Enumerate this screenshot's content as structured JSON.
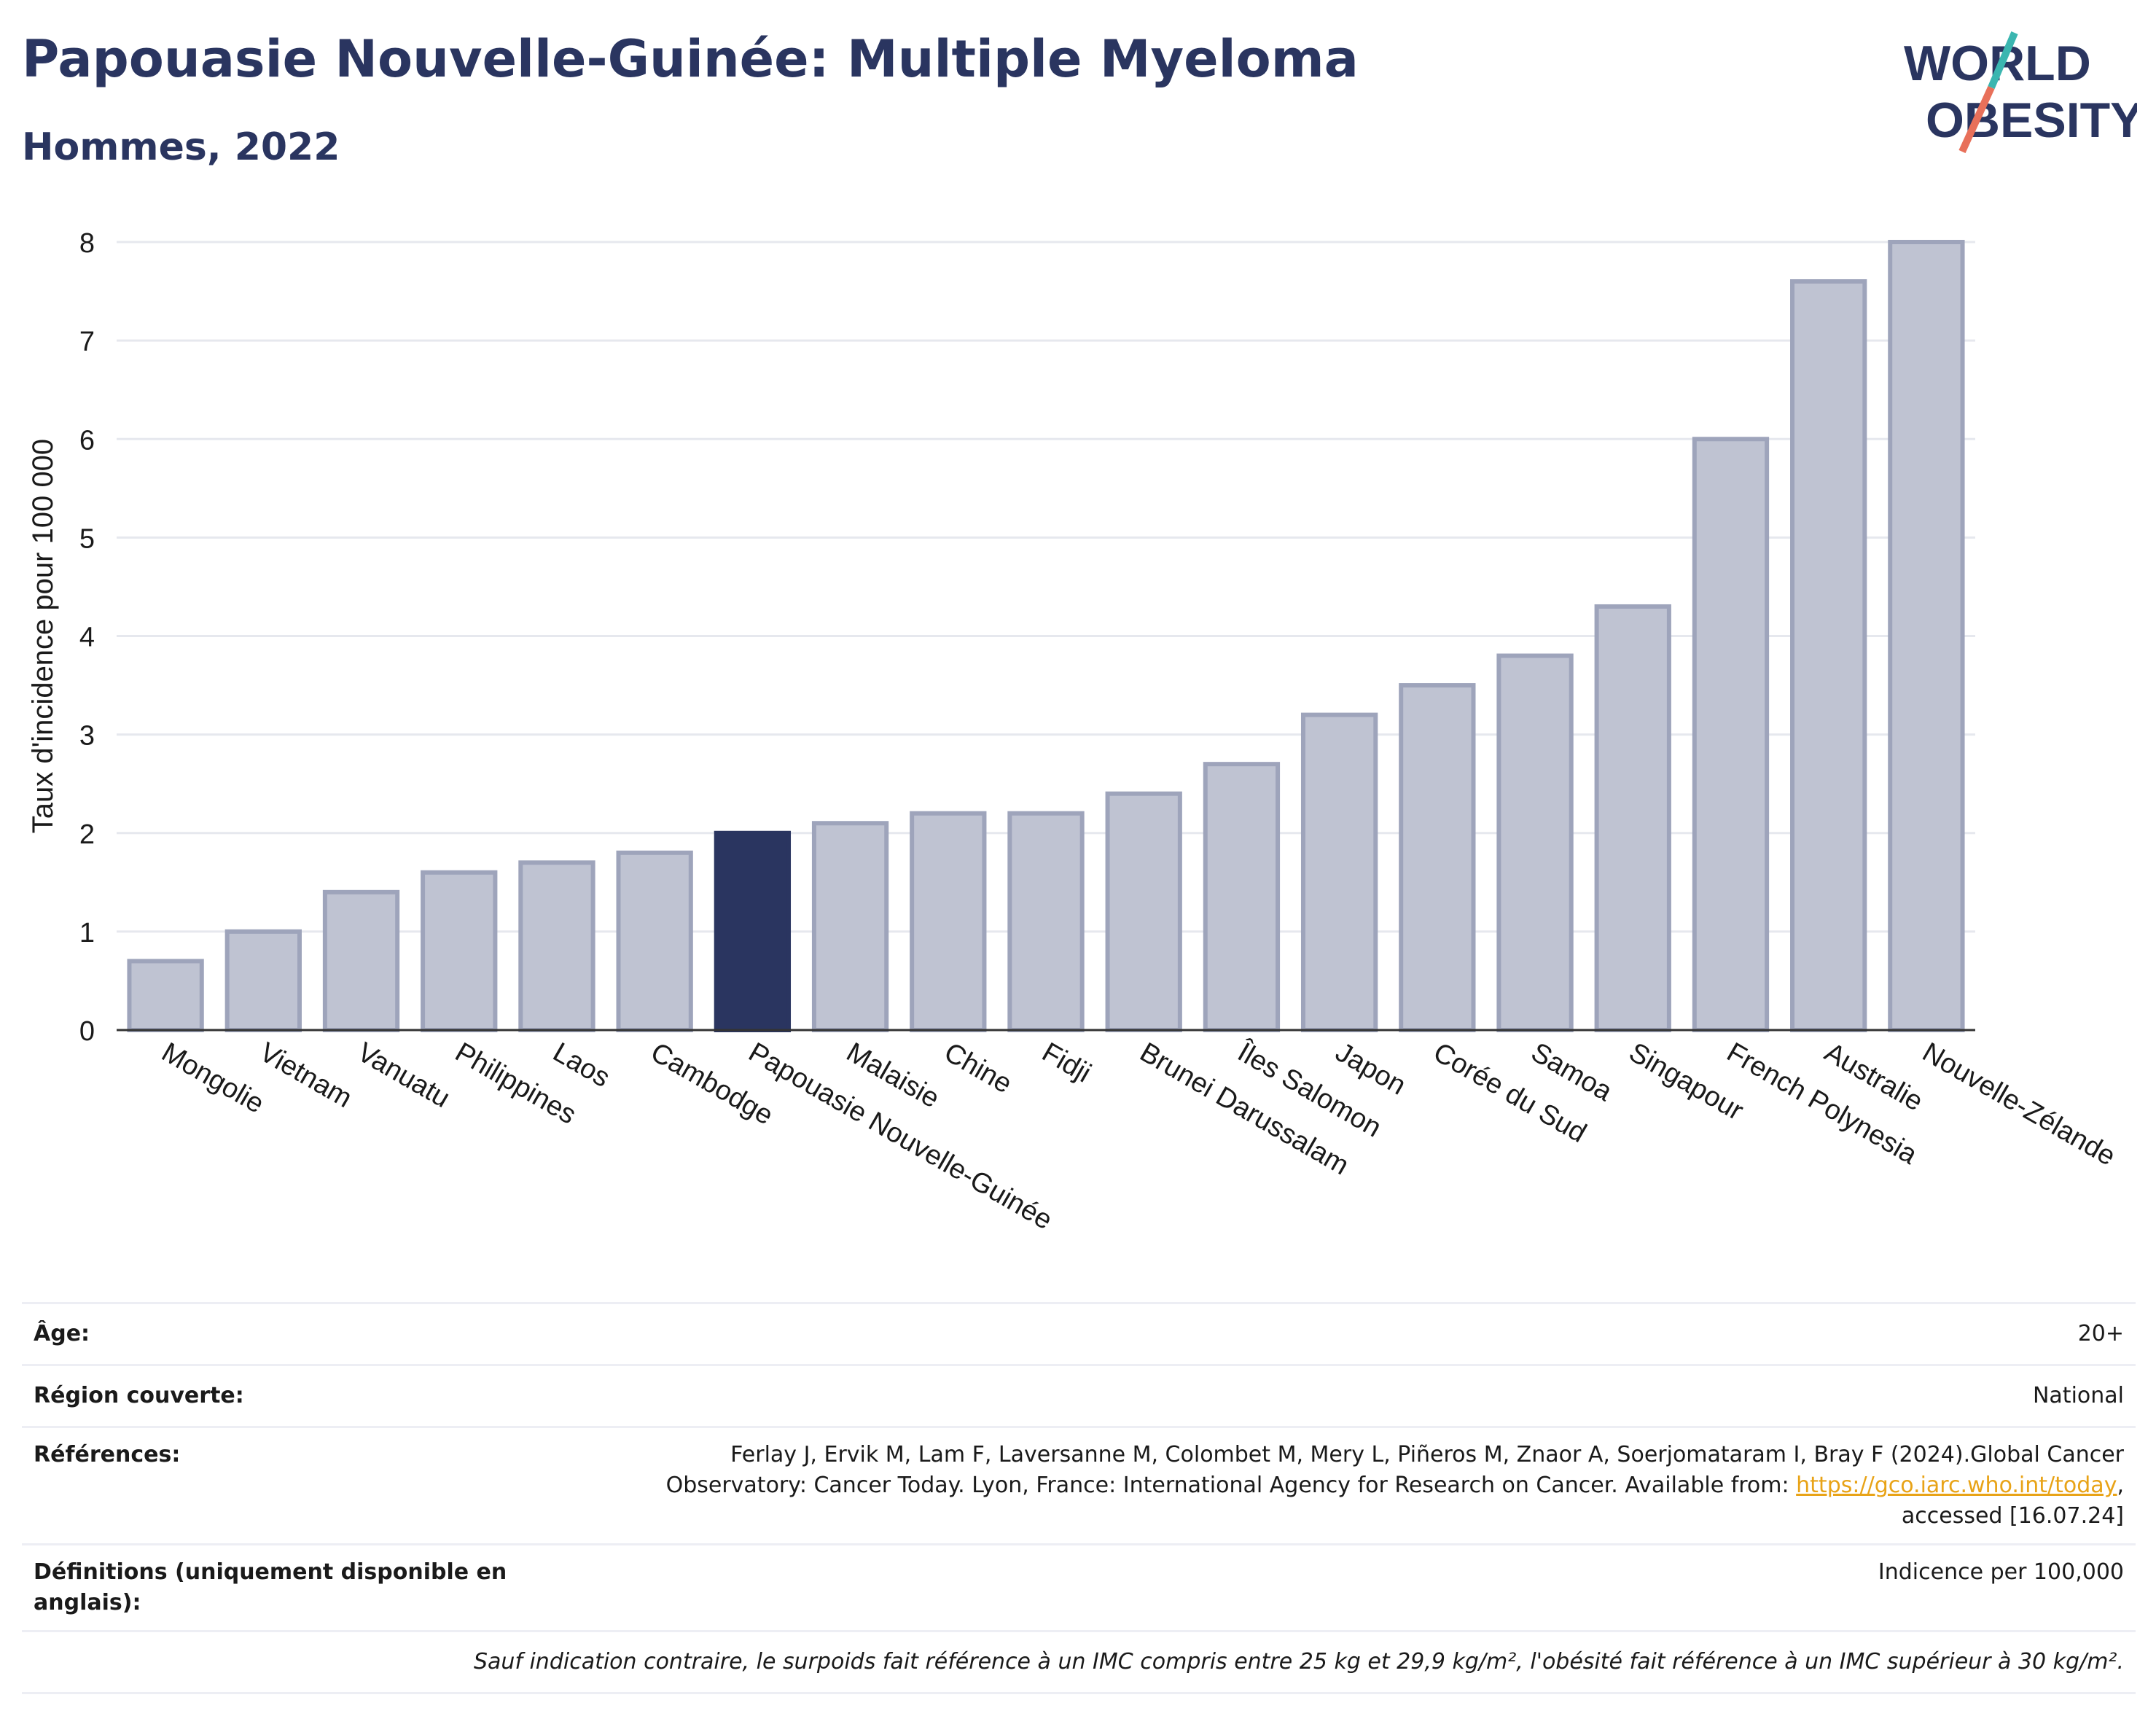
{
  "header": {
    "title": "Papouasie Nouvelle-Guinée: Multiple Myeloma",
    "subtitle": "Hommes, 2022"
  },
  "logo": {
    "line1": "WORLD",
    "line2": "OBESITY"
  },
  "chart_data": {
    "type": "bar",
    "ylabel": "Taux d'incidence pour 100 000",
    "ylim": [
      0,
      8
    ],
    "yticks": [
      0,
      1,
      2,
      3,
      4,
      5,
      6,
      7,
      8
    ],
    "grid": true,
    "categories": [
      "Mongolie",
      "Vietnam",
      "Vanuatu",
      "Philippines",
      "Laos",
      "Cambodge",
      "Papouasie Nouvelle-Guinée",
      "Malaisie",
      "Chine",
      "Fidji",
      "Brunei Darussalam",
      "Îles Salomon",
      "Japon",
      "Corée du Sud",
      "Samoa",
      "Singapour",
      "French Polynesia",
      "Australie",
      "Nouvelle-Zélande"
    ],
    "values": [
      0.7,
      1.0,
      1.4,
      1.6,
      1.7,
      1.8,
      2.0,
      2.1,
      2.2,
      2.2,
      2.4,
      2.7,
      3.2,
      3.5,
      3.8,
      4.3,
      6.0,
      7.6,
      8.0
    ],
    "highlight": "Papouasie Nouvelle-Guinée",
    "colors": {
      "bar": "#bfc3d2",
      "bar_border": "#9ea4bb",
      "highlight": "#2a3560",
      "grid": "#e6e8ee",
      "axis": "#333333"
    }
  },
  "info": {
    "age": {
      "label": "Âge:",
      "value": "20+"
    },
    "region": {
      "label": "Région couverte:",
      "value": "National"
    },
    "references": {
      "label": "Références:",
      "text1": "Ferlay J, Ervik M, Lam F, Laversanne M, Colombet M, Mery L, Piñeros M, Znaor A, Soerjomataram I, Bray F (2024).Global Cancer",
      "text2": "Observatory: Cancer Today. Lyon, France: International Agency for Research on Cancer. Available from: ",
      "link": "https://gco.iarc.who.int/today",
      "text3": ",",
      "text4": "accessed [16.07.24]"
    },
    "definitions": {
      "label": "Définitions (uniquement disponible en anglais):",
      "value": "Indicence per 100,000"
    },
    "footnote": "Sauf indication contraire, le surpoids fait référence à un IMC compris entre 25 kg et 29,9 kg/m², l'obésité fait référence à un IMC supérieur à 30 kg/m²."
  }
}
